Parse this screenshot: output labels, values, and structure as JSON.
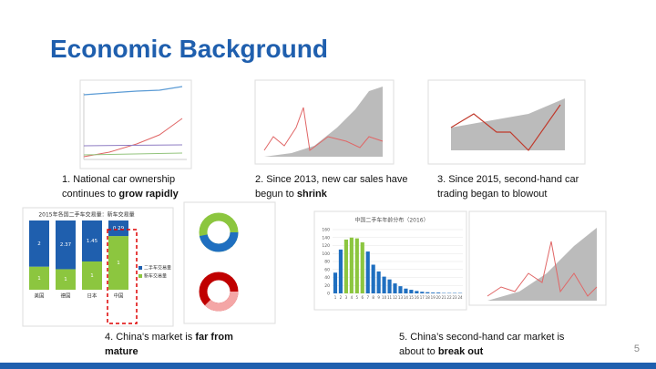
{
  "slide": {
    "title": "Economic Background",
    "page_number": "5",
    "captions": [
      {
        "text": "1. National car ownership continues to ",
        "bold": "grow rapidly"
      },
      {
        "text": "2. Since 2013, new car sales have begun to ",
        "bold": "shrink"
      },
      {
        "text": "3. Since 2015, second-hand car trading began to blowout"
      },
      {
        "text": "4. China's market is ",
        "bold": "far from mature"
      },
      {
        "text": "5. China’s second-hand car market is about to ",
        "bold": "break out"
      }
    ]
  },
  "charts": [
    {
      "type": "stacked-share-bar",
      "title": "2015年各国二手车交易量：新车交易量",
      "categories": [
        "美国",
        "德国",
        "日本",
        "中国"
      ],
      "series": [
        {
          "name": "二手车交易量",
          "color": "#1f5fae",
          "values": [
            2,
            2.37,
            1.45,
            0.29
          ]
        },
        {
          "name": "新车交易量",
          "color": "#8cc63f",
          "values": [
            1,
            1,
            1,
            1
          ]
        }
      ]
    },
    {
      "type": "bar",
      "title": "中国二手车年龄分布（2016）",
      "categories": [
        "1",
        "2",
        "3",
        "4",
        "5",
        "6",
        "7",
        "8",
        "9",
        "10",
        "11",
        "12",
        "13",
        "14",
        "15",
        "16",
        "17",
        "18",
        "19",
        "20",
        "21",
        "22",
        "23",
        "24"
      ],
      "values": [
        52,
        110,
        135,
        140,
        138,
        128,
        105,
        72,
        55,
        42,
        35,
        25,
        18,
        12,
        9,
        6,
        4,
        3,
        2,
        2,
        1,
        1,
        1,
        1
      ],
      "colors": [
        "#1f6fc0",
        "#1f6fc0",
        "#8cc63f",
        "#8cc63f",
        "#8cc63f",
        "#8cc63f",
        "#1f6fc0",
        "#1f6fc0",
        "#1f6fc0",
        "#1f6fc0",
        "#1f6fc0",
        "#1f6fc0",
        "#1f6fc0",
        "#1f6fc0",
        "#1f6fc0",
        "#1f6fc0",
        "#1f6fc0",
        "#1f6fc0",
        "#1f6fc0",
        "#1f6fc0",
        "#1f6fc0",
        "#1f6fc0",
        "#1f6fc0",
        "#1f6fc0"
      ],
      "ylim": [
        0,
        160
      ],
      "yticks": [
        0,
        20,
        40,
        60,
        80,
        100,
        120,
        140,
        160
      ],
      "grid": true
    }
  ]
}
